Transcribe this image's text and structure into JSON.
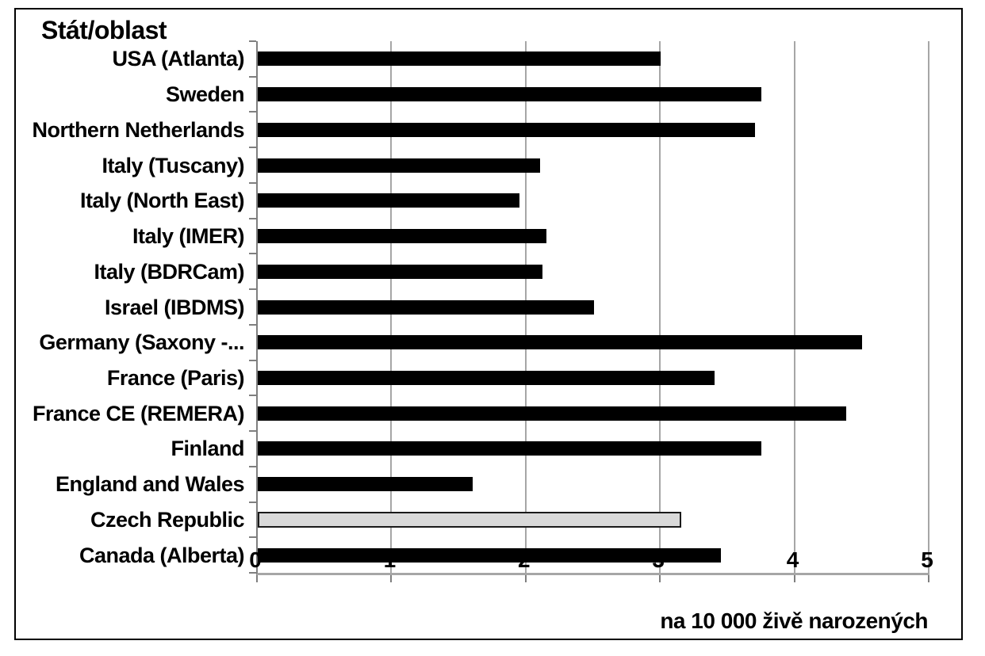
{
  "chart_data": {
    "type": "bar",
    "orientation": "horizontal",
    "title": "Stát/oblast",
    "xlabel": "na 10 000 živě narozených",
    "xlim": [
      0,
      5
    ],
    "xticks": [
      "0",
      "1",
      "2",
      "3",
      "4",
      "5"
    ],
    "grid": true,
    "legend": false,
    "categories": [
      "USA (Atlanta)",
      "Sweden",
      "Northern Netherlands",
      "Italy (Tuscany)",
      "Italy (North East)",
      "Italy (IMER)",
      "Italy (BDRCam)",
      "Israel (IBDMS)",
      "Germany (Saxony -...",
      "France (Paris)",
      "France CE (REMERA)",
      "Finland",
      "England and Wales",
      "Czech Republic",
      "Canada (Alberta)"
    ],
    "values": [
      3.0,
      3.75,
      3.7,
      2.1,
      1.95,
      2.15,
      2.12,
      2.5,
      4.5,
      3.4,
      4.38,
      3.75,
      1.6,
      3.15,
      3.45
    ],
    "bar_color": "#000000",
    "highlight": {
      "category": "Czech Republic",
      "fill": "#d9d9d9",
      "border": "#1a1a1a"
    }
  },
  "colors": {
    "background": "#ffffff",
    "frame_border": "#000000",
    "gridline": "#a6a6a6",
    "axis": "#7f7f7f",
    "text": "#000000"
  }
}
